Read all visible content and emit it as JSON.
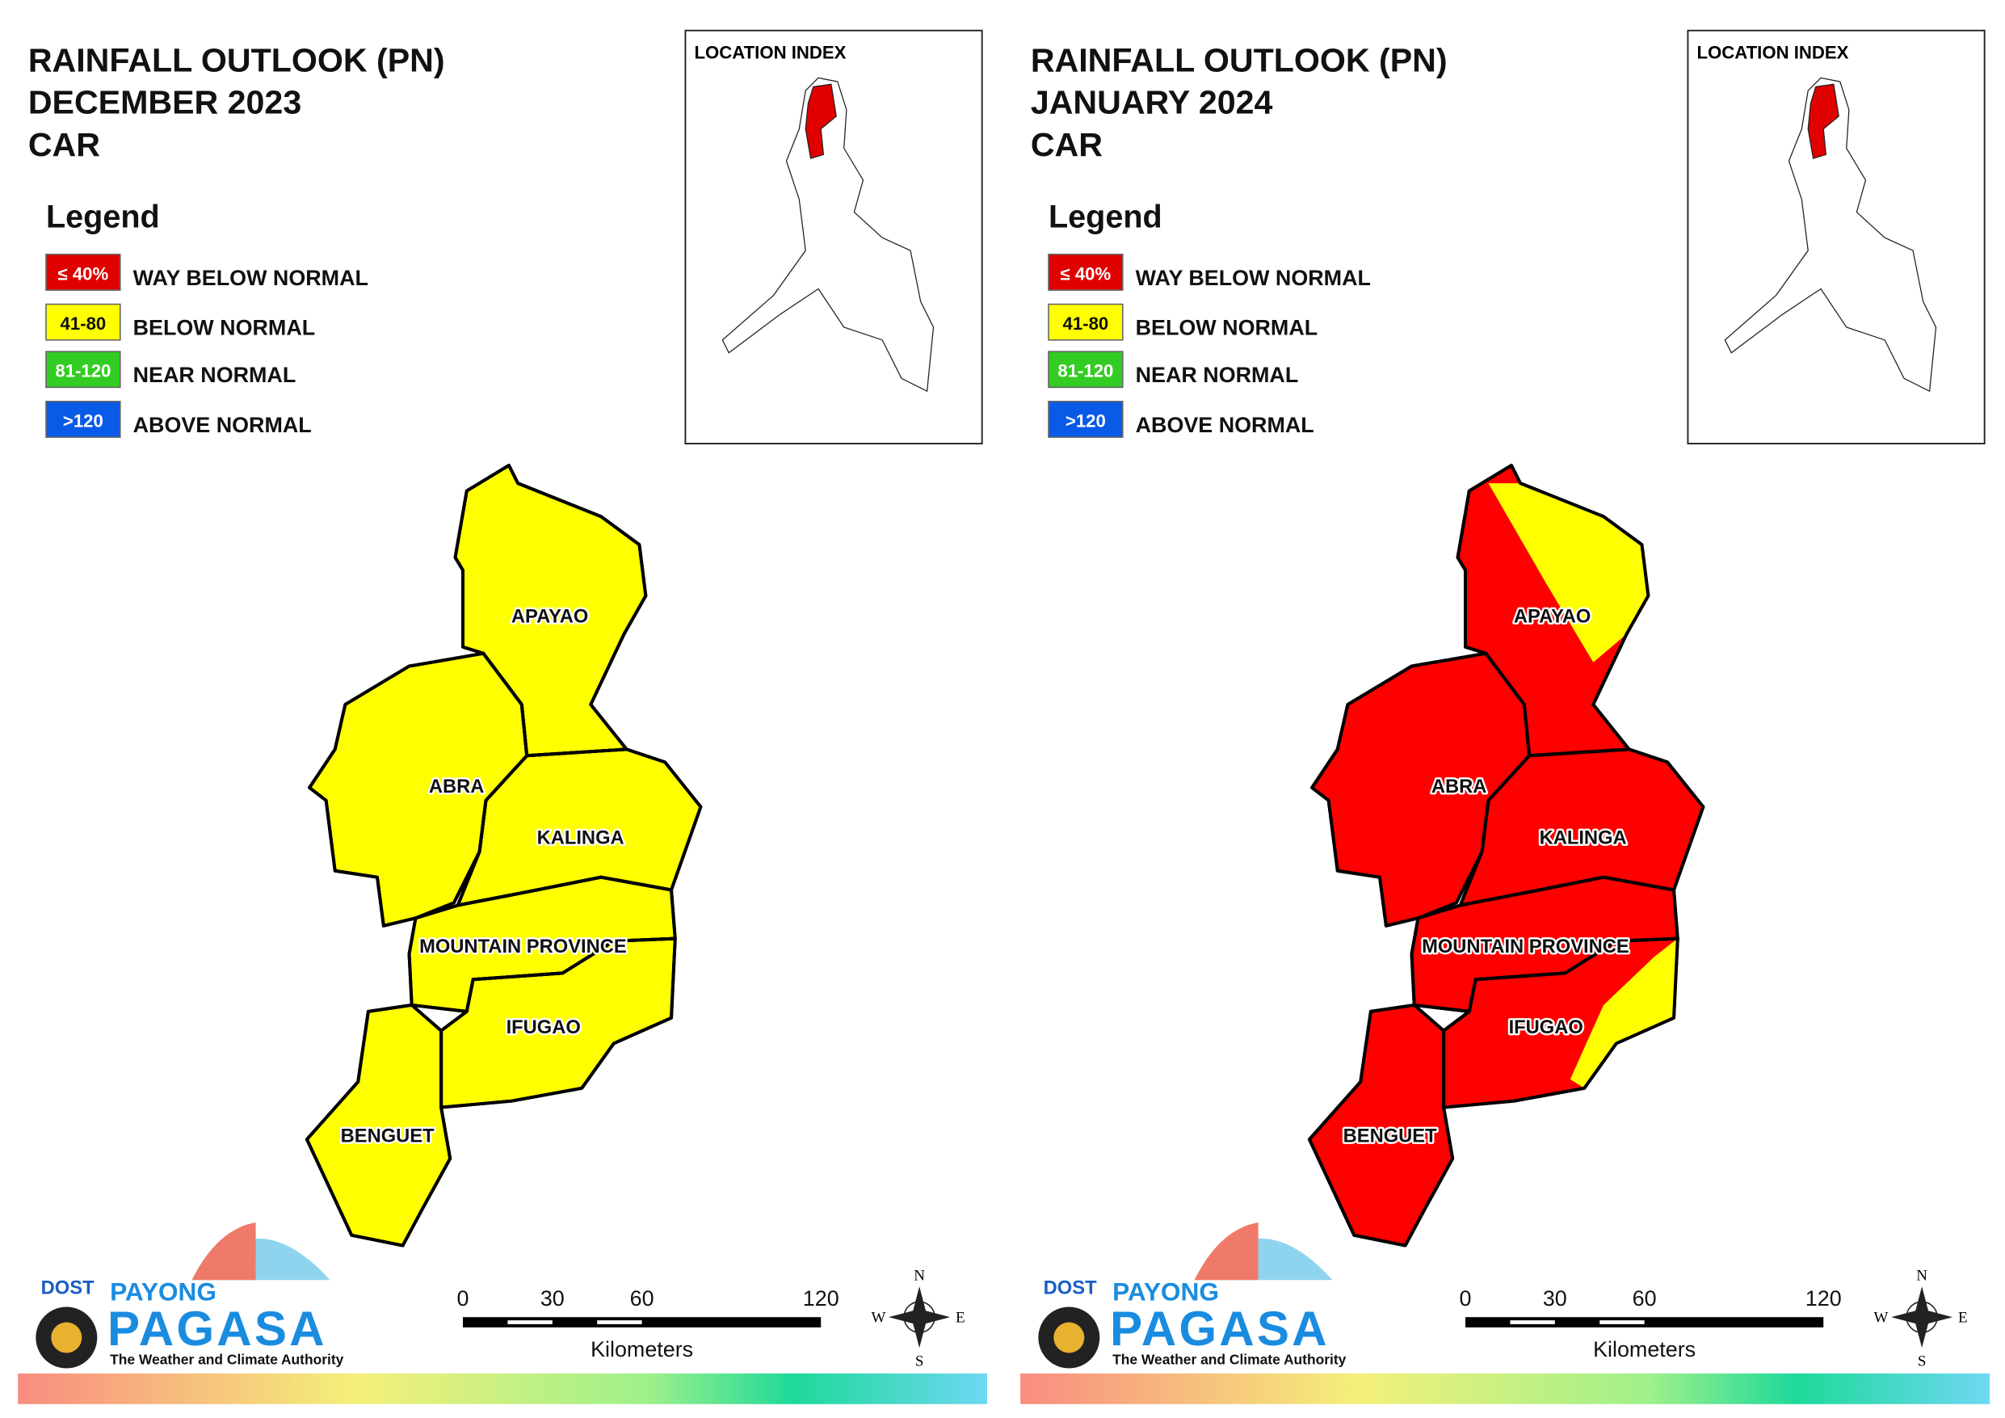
{
  "panels": [
    {
      "title": [
        "RAINFALL OUTLOOK (PN)",
        "DECEMBER 2023",
        "CAR"
      ],
      "location_index": "LOCATION INDEX",
      "legend_title": "Legend",
      "legend": [
        {
          "key": "≤ 40%",
          "label": "WAY BELOW NORMAL",
          "color": "#e00000"
        },
        {
          "key": "41-80",
          "label": "BELOW NORMAL",
          "color": "#ffff00"
        },
        {
          "key": "81-120",
          "label": "NEAR NORMAL",
          "color": "#33cc22"
        },
        {
          "key": ">120",
          "label": "ABOVE NORMAL",
          "color": "#0a5ae8"
        }
      ],
      "provinces": [
        {
          "name": "APAYAO",
          "color": "#ffff00"
        },
        {
          "name": "ABRA",
          "color": "#ffff00"
        },
        {
          "name": "KALINGA",
          "color": "#ffff00"
        },
        {
          "name": "MOUNTAIN PROVINCE",
          "color": "#ffff00"
        },
        {
          "name": "IFUGAO",
          "color": "#ffff00"
        },
        {
          "name": "BENGUET",
          "color": "#ffff00"
        }
      ],
      "partial": [],
      "scale": {
        "ticks": [
          0,
          30,
          60,
          120
        ],
        "unit": "Kilometers"
      },
      "compass": {
        "n": "N",
        "e": "E",
        "s": "S",
        "w": "W"
      },
      "logo": {
        "agency": "DOST",
        "line1": "PAYONG",
        "line2": "PAGASA",
        "tagline": "The Weather and Climate Authority"
      }
    },
    {
      "title": [
        "RAINFALL OUTLOOK (PN)",
        "JANUARY 2024",
        "CAR"
      ],
      "location_index": "LOCATION INDEX",
      "legend_title": "Legend",
      "legend": [
        {
          "key": "≤ 40%",
          "label": "WAY BELOW NORMAL",
          "color": "#e00000"
        },
        {
          "key": "41-80",
          "label": "BELOW NORMAL",
          "color": "#ffff00"
        },
        {
          "key": "81-120",
          "label": "NEAR NORMAL",
          "color": "#33cc22"
        },
        {
          "key": ">120",
          "label": "ABOVE NORMAL",
          "color": "#0a5ae8"
        }
      ],
      "provinces": [
        {
          "name": "APAYAO",
          "color": "#ff0000"
        },
        {
          "name": "ABRA",
          "color": "#ff0000"
        },
        {
          "name": "KALINGA",
          "color": "#ff0000"
        },
        {
          "name": "MOUNTAIN PROVINCE",
          "color": "#ff0000"
        },
        {
          "name": "IFUGAO",
          "color": "#ff0000"
        },
        {
          "name": "BENGUET",
          "color": "#ff0000"
        }
      ],
      "partial": [
        {
          "province": 0,
          "color": "#ffff00"
        },
        {
          "province": 4,
          "color": "#ffff00"
        }
      ],
      "scale": {
        "ticks": [
          0,
          30,
          60,
          120
        ],
        "unit": "Kilometers"
      },
      "compass": {
        "n": "N",
        "e": "E",
        "s": "S",
        "w": "W"
      },
      "logo": {
        "agency": "DOST",
        "line1": "PAYONG",
        "line2": "PAGASA",
        "tagline": "The Weather and Climate Authority"
      }
    }
  ]
}
